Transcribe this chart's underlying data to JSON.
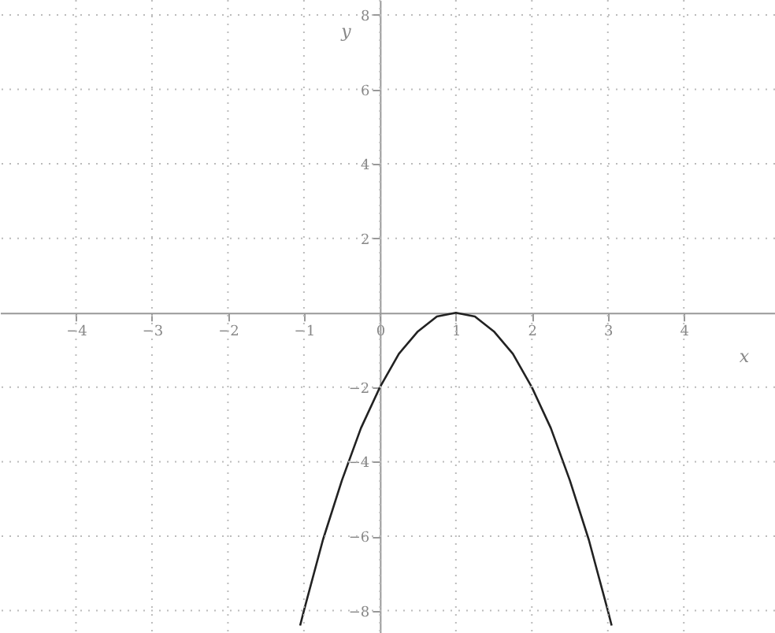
{
  "chart_data": {
    "type": "line",
    "xlabel": "x",
    "ylabel": "y",
    "x": [
      -1.05,
      -1,
      -0.75,
      -0.5,
      -0.25,
      0,
      0.25,
      0.5,
      0.75,
      1,
      1.25,
      1.5,
      1.75,
      2,
      2.25,
      2.5,
      2.75,
      3,
      3.05
    ],
    "series": [
      {
        "color": "#222222",
        "values": [
          -8.4,
          -8,
          -6.1,
          -4.5,
          -3.1,
          -2,
          -1.1,
          -0.5,
          -0.1,
          0,
          -0.1,
          -0.5,
          -1.1,
          -2,
          -3.1,
          -4.5,
          -6.1,
          -8,
          -8.4
        ]
      }
    ],
    "xlim": [
      -5,
      5.2
    ],
    "ylim": [
      -8.6,
      8.4
    ],
    "xticks": [
      -4,
      -3,
      -2,
      -1,
      0,
      1,
      2,
      3,
      4
    ],
    "yticks": [
      -8,
      -6,
      -4,
      -2,
      2,
      4,
      6,
      8
    ],
    "grid": true,
    "marker": "none",
    "line_style": "solid"
  }
}
